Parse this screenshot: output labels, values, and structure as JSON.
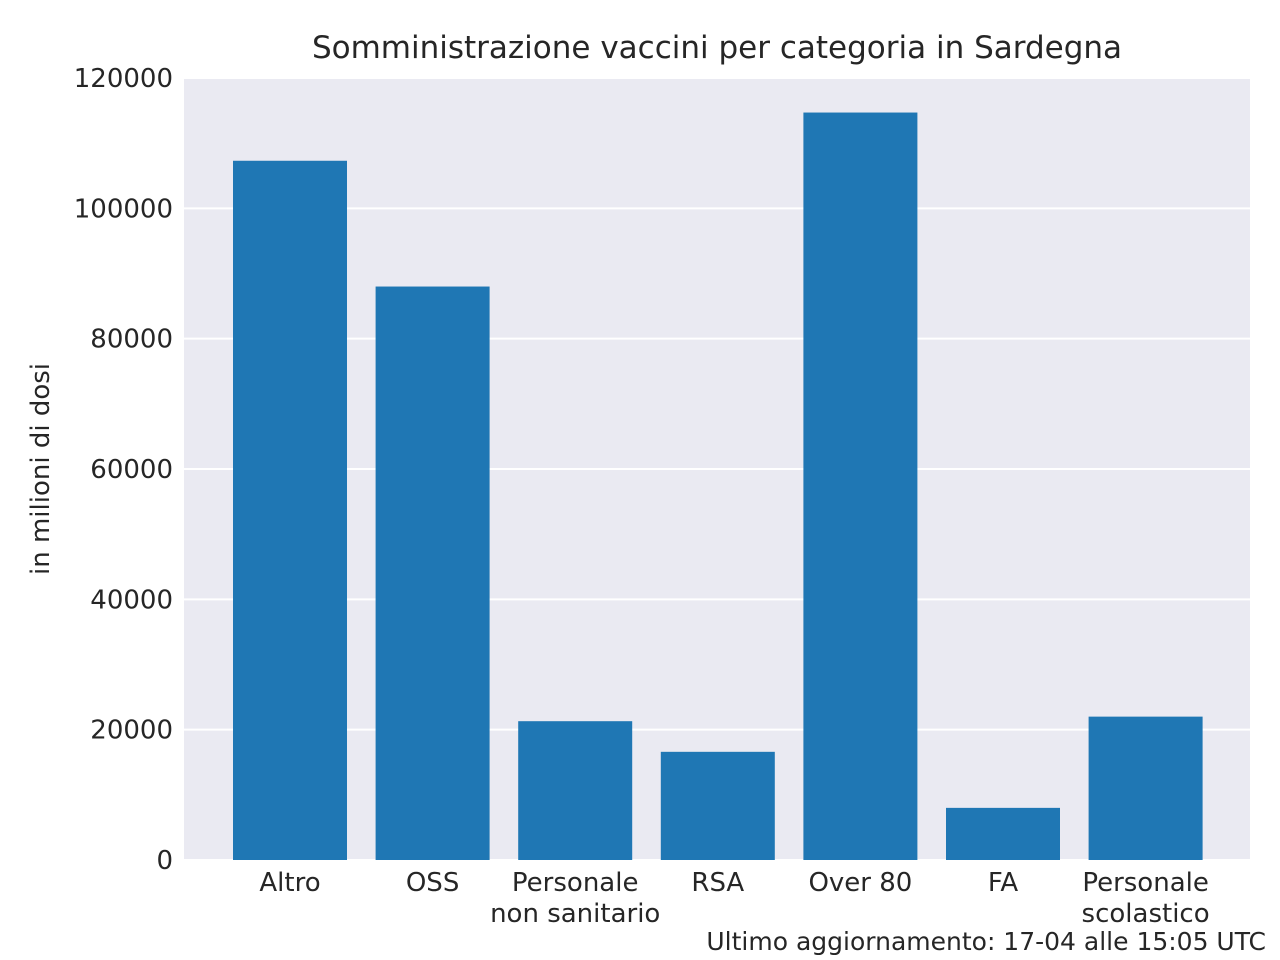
{
  "chart_data": {
    "type": "bar",
    "title": "Somministrazione vaccini per categoria in Sardegna",
    "xlabel": "",
    "ylabel": "in milioni di dosi",
    "categories": [
      "Altro",
      "OSS",
      "Personale non sanitario",
      "RSA",
      "Over 80",
      "FA",
      "Personale scolastico"
    ],
    "category_lines": [
      [
        "Altro"
      ],
      [
        "OSS"
      ],
      [
        "Personale",
        "non sanitario"
      ],
      [
        "RSA"
      ],
      [
        "Over 80"
      ],
      [
        "FA"
      ],
      [
        "Personale",
        "scolastico"
      ]
    ],
    "values": [
      107300,
      88000,
      21300,
      16600,
      114700,
      8000,
      22000
    ],
    "ylim": [
      0,
      120000
    ],
    "yticks": [
      0,
      20000,
      40000,
      60000,
      80000,
      100000,
      120000
    ],
    "grid": true,
    "legend": "none",
    "bar_color": "#1f77b4",
    "plot_background": "#eaeaf2",
    "grid_color": "#ffffff"
  },
  "footer": {
    "last_update": "Ultimo aggiornamento: 17-04 alle 15:05 UTC"
  }
}
